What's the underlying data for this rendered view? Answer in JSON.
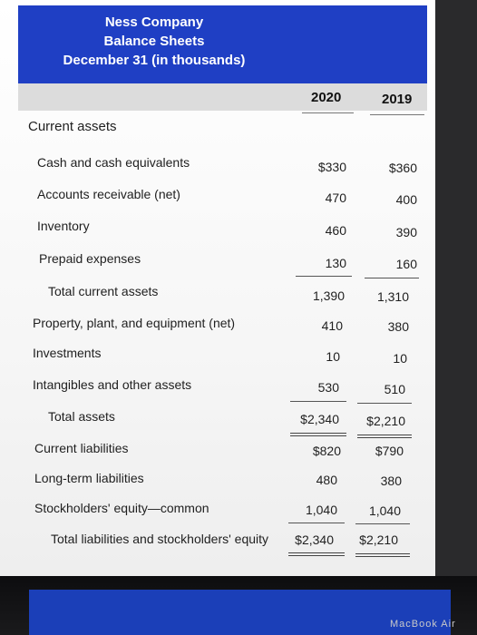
{
  "header": {
    "company": "Ness Company",
    "statement": "Balance Sheets",
    "date": "December 31 (in thousands)"
  },
  "columns": {
    "year1": "2020",
    "year2": "2019"
  },
  "rows": {
    "current_assets": {
      "label": "Current assets"
    },
    "cash": {
      "label": "Cash and cash equivalents",
      "v2020": "$330",
      "v2019": "$360"
    },
    "ar": {
      "label": "Accounts receivable (net)",
      "v2020": "470",
      "v2019": "400"
    },
    "inventory": {
      "label": "Inventory",
      "v2020": "460",
      "v2019": "390"
    },
    "prepaid": {
      "label": "Prepaid expenses",
      "v2020": "130",
      "v2019": "160"
    },
    "total_current_assets": {
      "label": "Total current assets",
      "v2020": "1,390",
      "v2019": "1,310"
    },
    "ppe": {
      "label": "Property, plant, and equipment (net)",
      "v2020": "410",
      "v2019": "380"
    },
    "investments": {
      "label": "Investments",
      "v2020": "10",
      "v2019": "10"
    },
    "intangibles": {
      "label": "Intangibles and other assets",
      "v2020": "530",
      "v2019": "510"
    },
    "total_assets": {
      "label": "Total assets",
      "v2020": "$2,340",
      "v2019": "$2,210"
    },
    "current_liabilities": {
      "label": "Current liabilities",
      "v2020": "$820",
      "v2019": "$790"
    },
    "long_term": {
      "label": "Long-term liabilities",
      "v2020": "480",
      "v2019": "380"
    },
    "equity": {
      "label": "Stockholders' equity—common",
      "v2020": "1,040",
      "v2019": "1,040"
    },
    "total_le": {
      "label": "Total liabilities and stockholders' equity",
      "v2020": "$2,340",
      "v2019": "$2,210"
    }
  },
  "device": {
    "brand": "MacBook Air"
  },
  "colors": {
    "header_bg": "#1f3fc4",
    "col_header_bg": "#dcdcdc"
  }
}
